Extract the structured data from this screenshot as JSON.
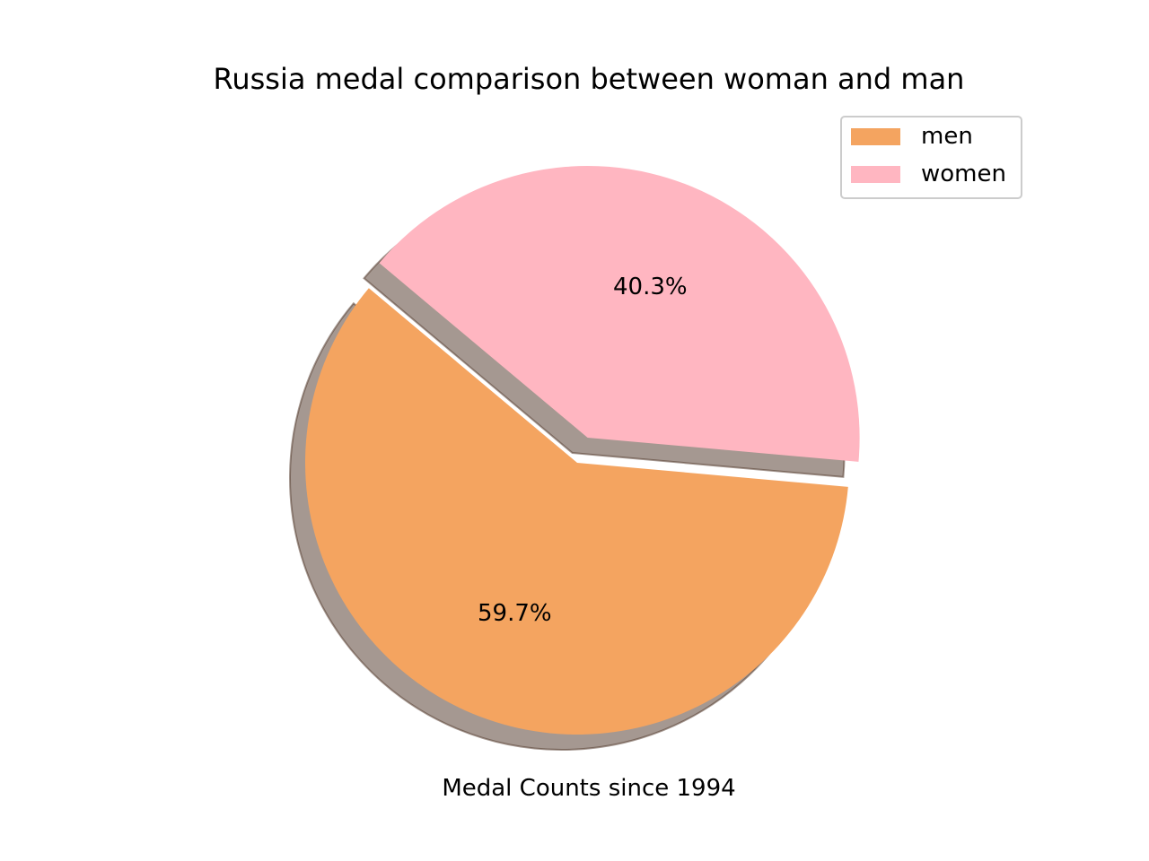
{
  "chart_data": {
    "type": "pie",
    "title": "Russia medal comparison between woman and man",
    "xlabel": "Medal Counts since 1994",
    "legend_position": "top-right",
    "shadow": true,
    "start_angle_deg": 140,
    "slices": [
      {
        "label": "men",
        "value": 59.7,
        "pct_label": "59.7%",
        "color": "#F4A460",
        "explode": 0
      },
      {
        "label": "women",
        "value": 40.3,
        "pct_label": "40.3%",
        "color": "#FFB6C1",
        "explode": 0.1
      }
    ]
  }
}
